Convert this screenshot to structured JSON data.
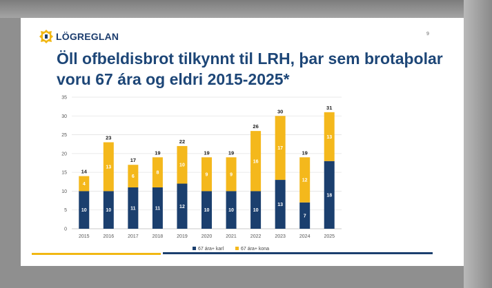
{
  "header": {
    "logo_text": "LÖGREGLAN",
    "page_number": "9",
    "title": "Öll ofbeldisbrot tilkynnt til LRH, þar sem brotaþolar voru 67 ára og eldri 2015-2025*"
  },
  "colors": {
    "male": "#1b3f6e",
    "female": "#f4b81c",
    "title": "#1d4677",
    "accent_gold": "#f1b713",
    "accent_navy": "#1b3f6e"
  },
  "chart_data": {
    "type": "bar",
    "stacked": true,
    "title": "",
    "xlabel": "",
    "ylabel": "",
    "categories": [
      "2015",
      "2016",
      "2017",
      "2018",
      "2019",
      "2020",
      "2021",
      "2022",
      "2023",
      "2024",
      "2025"
    ],
    "series": [
      {
        "name": "67 ára+ karl",
        "values": [
          10,
          10,
          11,
          11,
          12,
          10,
          10,
          10,
          13,
          7,
          18
        ]
      },
      {
        "name": "67 ára+ kona",
        "values": [
          4,
          13,
          6,
          8,
          10,
          9,
          9,
          16,
          17,
          12,
          13
        ]
      }
    ],
    "totals": [
      14,
      23,
      17,
      19,
      22,
      19,
      19,
      26,
      30,
      19,
      31
    ],
    "ylim": [
      0,
      35
    ],
    "yticks": [
      0,
      5,
      10,
      15,
      20,
      25,
      30,
      35
    ],
    "grid": true,
    "legend_position": "bottom"
  }
}
